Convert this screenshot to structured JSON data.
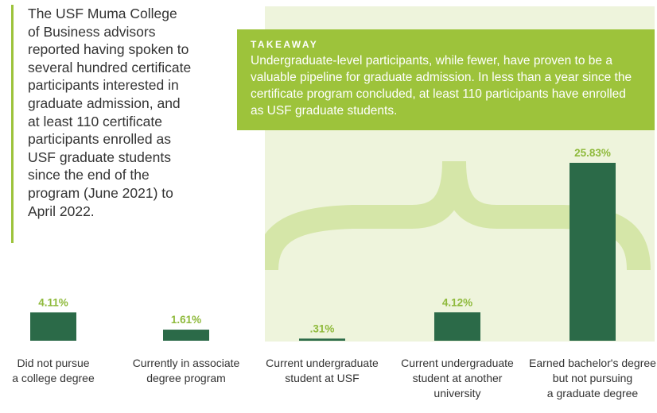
{
  "intro": {
    "text": "The USF Muma College of Business advisors reported having spoken to several hundred certificate participants interested in graduate admission, and at least 110 certificate participants enrolled as USF graduate students since the end of the program (June 2021) to April 2022."
  },
  "takeaway": {
    "title": "TAKEAWAY",
    "text": "Undergraduate-level participants, while fewer, have proven to be a valuable pipeline for graduate admission. In less than a year since the certificate program concluded, at least 110 participants have enrolled as USF graduate students."
  },
  "colors": {
    "bar": "#2b6a48",
    "accent": "#9dc33b",
    "panel": "#eef4dc",
    "brace": "#d5e6a8"
  },
  "chart_data": {
    "type": "bar",
    "categories": [
      [
        "Did not pursue",
        "a college degree"
      ],
      [
        "Currently in associate",
        "degree program"
      ],
      [
        "Current undergraduate",
        "student at USF"
      ],
      [
        "Current undergraduate",
        "student at another",
        "university"
      ],
      [
        "Earned bachelor's degree",
        "but not pursuing",
        "a graduate degree"
      ]
    ],
    "values": [
      4.11,
      1.61,
      0.31,
      4.12,
      25.83
    ],
    "value_labels": [
      "4.11%",
      "1.61%",
      ".31%",
      "4.12%",
      "25.83%"
    ],
    "ylim": [
      0,
      25.83
    ],
    "grid": false,
    "legend": "none"
  }
}
